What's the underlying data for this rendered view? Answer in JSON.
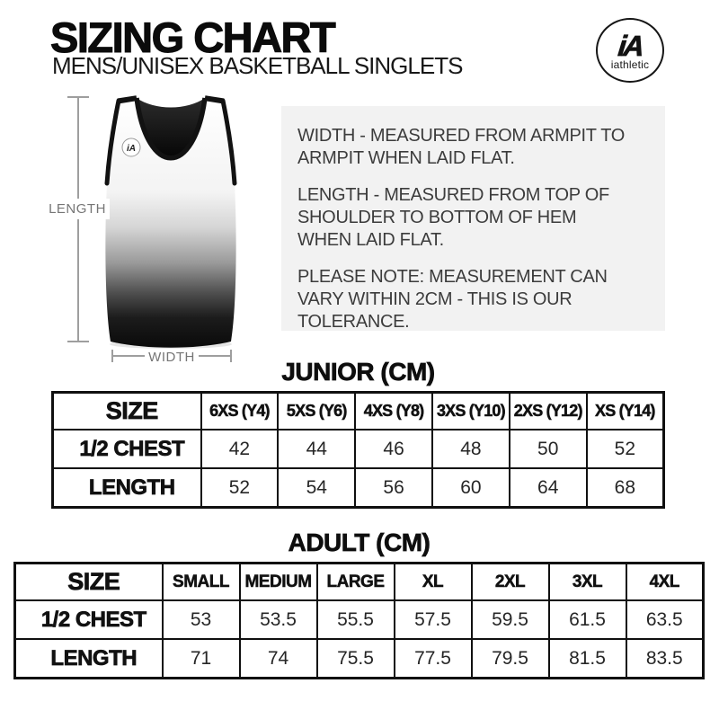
{
  "header": {
    "title": "SIZING CHART",
    "subtitle": "MENS/UNISEX BASKETBALL SINGLETS",
    "logo_mark": "iA",
    "logo_text": "iathletic"
  },
  "diagram": {
    "length_label": "LENGTH",
    "width_label": "WIDTH",
    "chest_logo_mark": "iA"
  },
  "notes": [
    [
      "WIDTH - MEASURED FROM ARMPIT TO",
      "ARMPIT WHEN LAID FLAT."
    ],
    [
      "LENGTH - MEASURED FROM TOP OF",
      "SHOULDER TO BOTTOM OF HEM",
      "WHEN LAID FLAT."
    ],
    [
      "PLEASE NOTE: MEASUREMENT CAN",
      "VARY WITHIN 2CM - THIS IS OUR",
      "TOLERANCE."
    ]
  ],
  "tables": [
    {
      "title": "JUNIOR (CM)",
      "size_header": "SIZE",
      "columns": [
        "6XS (Y4)",
        "5XS (Y6)",
        "4XS (Y8)",
        "3XS (Y10)",
        "2XS (Y12)",
        "XS (Y14)"
      ],
      "rows": [
        {
          "label": "1/2 CHEST",
          "values": [
            "42",
            "44",
            "46",
            "48",
            "50",
            "52"
          ]
        },
        {
          "label": "LENGTH",
          "values": [
            "52",
            "54",
            "56",
            "60",
            "64",
            "68"
          ]
        }
      ]
    },
    {
      "title": "ADULT (CM)",
      "size_header": "SIZE",
      "columns": [
        "SMALL",
        "MEDIUM",
        "LARGE",
        "XL",
        "2XL",
        "3XL",
        "4XL"
      ],
      "rows": [
        {
          "label": "1/2 CHEST",
          "values": [
            "53",
            "53.5",
            "55.5",
            "57.5",
            "59.5",
            "61.5",
            "63.5"
          ]
        },
        {
          "label": "LENGTH",
          "values": [
            "71",
            "74",
            "75.5",
            "77.5",
            "79.5",
            "81.5",
            "83.5"
          ]
        }
      ]
    }
  ],
  "colors": {
    "ink": "#111111",
    "notes_bg": "#f2f2f2",
    "measure_line": "#9e9e9e",
    "singlet_gradient_top": "#ffffff",
    "singlet_gradient_bottom": "#0a0a0a"
  }
}
